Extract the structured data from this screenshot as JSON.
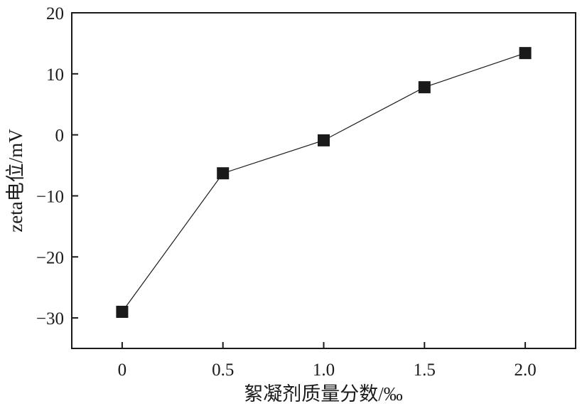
{
  "chart_data": {
    "type": "line",
    "xlabel": "絮凝剂质量分数/‰",
    "ylabel": "zeta电位/mV",
    "x": [
      0,
      0.5,
      1.0,
      1.5,
      2.0
    ],
    "y": [
      -29,
      -6.3,
      -0.9,
      7.8,
      13.4
    ],
    "xlim": [
      -0.25,
      2.25
    ],
    "ylim": [
      -35,
      20
    ],
    "xticks": [
      0,
      0.5,
      1.0,
      1.5,
      2.0
    ],
    "xtick_labels": [
      "0",
      "0.5",
      "1.0",
      "1.5",
      "2.0"
    ],
    "yticks": [
      -30,
      -20,
      -10,
      0,
      10,
      20
    ],
    "ytick_labels": [
      "−30",
      "−20",
      "−10",
      "0",
      "10",
      "20"
    ],
    "grid": false,
    "legend": "none",
    "marker": "square",
    "colors": {
      "line": "#1a1a1a",
      "marker": "#1a1a1a",
      "axes": "#1a1a1a"
    }
  }
}
